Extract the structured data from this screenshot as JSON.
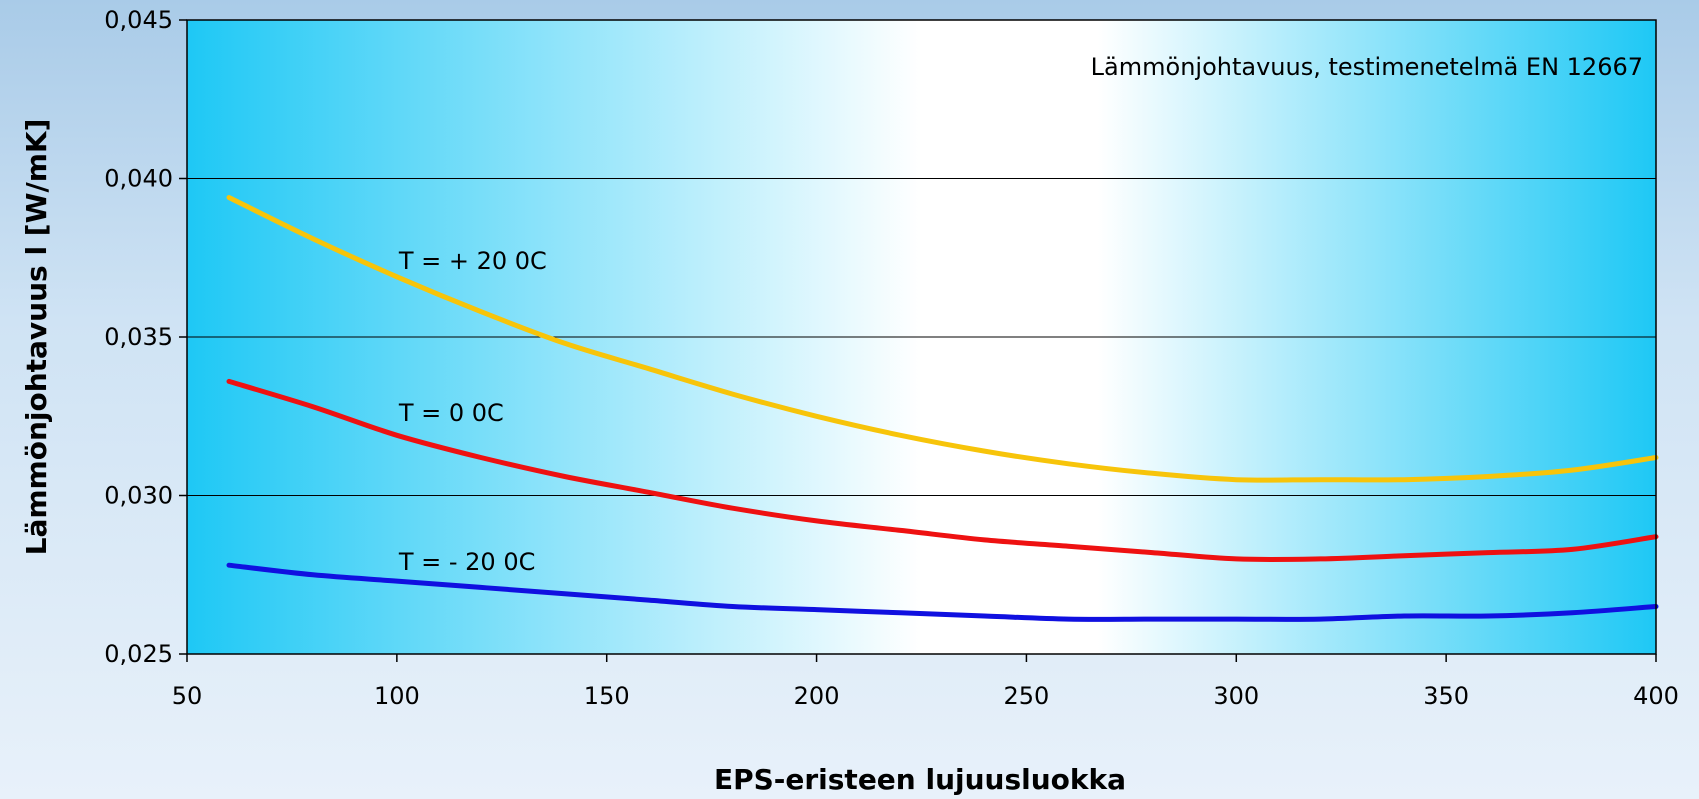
{
  "chart_data": {
    "type": "line",
    "title": "Lämmönjohtavuus, testimenetelmä EN 12667",
    "xlabel": "EPS-eristeen lujuusluokka",
    "ylabel": "Lämmönjohtavuus l [W/mK]",
    "xlim": [
      50,
      400
    ],
    "ylim": [
      0.025,
      0.045
    ],
    "x_ticks": [
      50,
      100,
      150,
      200,
      250,
      300,
      350,
      400
    ],
    "x_tick_labels": [
      "50",
      "100",
      "150",
      "200",
      "250",
      "300",
      "350",
      "400"
    ],
    "y_ticks": [
      0.025,
      0.03,
      0.035,
      0.04,
      0.045
    ],
    "y_tick_labels": [
      "0,025",
      "0,030",
      "0,035",
      "0,040",
      "0,045"
    ],
    "grid": "horizontal",
    "series": [
      {
        "name": "T = + 20 0C",
        "color": "#f7c40a",
        "x": [
          60,
          80,
          100,
          120,
          140,
          160,
          180,
          200,
          220,
          240,
          260,
          280,
          300,
          320,
          340,
          360,
          380,
          400
        ],
        "y": [
          0.0394,
          0.0381,
          0.0369,
          0.0358,
          0.0348,
          0.034,
          0.0332,
          0.0325,
          0.0319,
          0.0314,
          0.031,
          0.0307,
          0.0305,
          0.0305,
          0.0305,
          0.0306,
          0.0308,
          0.0312
        ]
      },
      {
        "name": "T =  0 0C",
        "color": "#ee1111",
        "x": [
          60,
          80,
          100,
          120,
          140,
          160,
          180,
          200,
          220,
          240,
          260,
          280,
          300,
          320,
          340,
          360,
          380,
          400
        ],
        "y": [
          0.0336,
          0.0328,
          0.0319,
          0.0312,
          0.0306,
          0.0301,
          0.0296,
          0.0292,
          0.0289,
          0.0286,
          0.0284,
          0.0282,
          0.028,
          0.028,
          0.0281,
          0.0282,
          0.0283,
          0.0287
        ]
      },
      {
        "name": "T = - 20 0C",
        "color": "#1010e0",
        "x": [
          60,
          80,
          100,
          120,
          140,
          160,
          180,
          200,
          220,
          240,
          260,
          280,
          300,
          320,
          340,
          360,
          380,
          400
        ],
        "y": [
          0.0278,
          0.0275,
          0.0273,
          0.0271,
          0.0269,
          0.0267,
          0.0265,
          0.0264,
          0.0263,
          0.0262,
          0.0261,
          0.0261,
          0.0261,
          0.0261,
          0.0262,
          0.0262,
          0.0263,
          0.0265
        ]
      }
    ],
    "annotations": [
      {
        "text": "T = + 20 0C",
        "x": 100,
        "y": 0.0374
      },
      {
        "text": "T =  0 0C",
        "x": 100,
        "y": 0.0326
      },
      {
        "text": "T = - 20 0C",
        "x": 100,
        "y": 0.0279
      }
    ],
    "title_placement": "top-right inside plot",
    "background": {
      "edge": "#1ec8f5",
      "center": "#ffffff"
    }
  }
}
